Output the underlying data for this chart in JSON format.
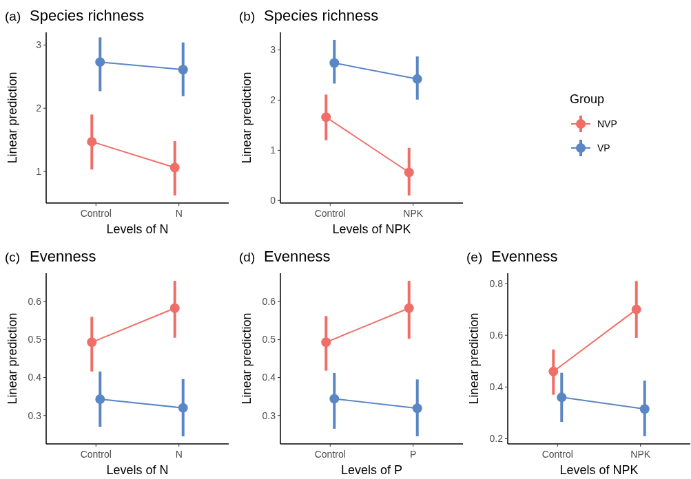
{
  "chart_data": [
    {
      "type": "line",
      "title": "Species richness",
      "annotations": [
        "(a)"
      ],
      "xlabel": "Levels of N",
      "ylabel": "Linear prediction",
      "categories": [
        "Control",
        "N"
      ],
      "ylim": [
        0.5,
        3.2
      ],
      "yticks": [
        1,
        2,
        3
      ],
      "marker": "circle",
      "series": [
        {
          "color": "#ef6f68",
          "values": [
            1.47,
            1.06
          ],
          "errors": [
            [
              1.03,
              1.9
            ],
            [
              0.62,
              1.48
            ]
          ]
        },
        {
          "color": "#5a86c5",
          "values": [
            2.73,
            2.61
          ],
          "errors": [
            [
              2.27,
              3.12
            ],
            [
              2.19,
              3.04
            ]
          ]
        }
      ]
    },
    {
      "type": "line",
      "title": "Species richness",
      "annotations": [
        "(b)"
      ],
      "xlabel": "Levels of NPK",
      "ylabel": "Linear prediction",
      "categories": [
        "Control",
        "NPK"
      ],
      "ylim": [
        -0.05,
        3.35
      ],
      "yticks": [
        0,
        1,
        2,
        3
      ],
      "marker": "circle",
      "legend": "right",
      "legend_title": "Group",
      "series": [
        {
          "name": "NVP",
          "color": "#ef6f68",
          "values": [
            1.66,
            0.56
          ],
          "errors": [
            [
              1.2,
              2.11
            ],
            [
              0.1,
              1.05
            ]
          ]
        },
        {
          "name": "VP",
          "color": "#5a86c5",
          "values": [
            2.74,
            2.42
          ],
          "errors": [
            [
              2.33,
              3.2
            ],
            [
              2.01,
              2.87
            ]
          ]
        }
      ]
    },
    {
      "type": "line",
      "title": "Evenness",
      "annotations": [
        "(c)"
      ],
      "xlabel": "Levels of N",
      "ylabel": "Linear prediction",
      "categories": [
        "Control",
        "N"
      ],
      "ylim": [
        0.225,
        0.675
      ],
      "yticks": [
        0.3,
        0.4,
        0.5,
        0.6
      ],
      "marker": "circle",
      "series": [
        {
          "color": "#ef6f68",
          "values": [
            0.493,
            0.583
          ],
          "errors": [
            [
              0.416,
              0.56
            ],
            [
              0.505,
              0.655
            ]
          ]
        },
        {
          "color": "#5a86c5",
          "values": [
            0.343,
            0.32
          ],
          "errors": [
            [
              0.27,
              0.416
            ],
            [
              0.245,
              0.396
            ]
          ]
        }
      ]
    },
    {
      "type": "line",
      "title": "Evenness",
      "annotations": [
        "(d)"
      ],
      "xlabel": "Levels of P",
      "ylabel": "Linear prediction",
      "categories": [
        "Control",
        "P"
      ],
      "ylim": [
        0.225,
        0.675
      ],
      "yticks": [
        0.3,
        0.4,
        0.5,
        0.6
      ],
      "marker": "circle",
      "series": [
        {
          "color": "#ef6f68",
          "values": [
            0.493,
            0.583
          ],
          "errors": [
            [
              0.418,
              0.562
            ],
            [
              0.502,
              0.655
            ]
          ]
        },
        {
          "color": "#5a86c5",
          "values": [
            0.344,
            0.319
          ],
          "errors": [
            [
              0.265,
              0.412
            ],
            [
              0.245,
              0.395
            ]
          ]
        }
      ]
    },
    {
      "type": "line",
      "title": "Evenness",
      "annotations": [
        "(e)"
      ],
      "xlabel": "Levels of NPK",
      "ylabel": "Linear prediction",
      "categories": [
        "Control",
        "NPK"
      ],
      "ylim": [
        0.18,
        0.84
      ],
      "yticks": [
        0.2,
        0.4,
        0.6,
        0.8
      ],
      "marker": "circle",
      "series": [
        {
          "color": "#ef6f68",
          "values": [
            0.46,
            0.7
          ],
          "errors": [
            [
              0.37,
              0.545
            ],
            [
              0.59,
              0.81
            ]
          ]
        },
        {
          "color": "#5a86c5",
          "values": [
            0.36,
            0.315
          ],
          "errors": [
            [
              0.265,
              0.455
            ],
            [
              0.21,
              0.425
            ]
          ]
        }
      ]
    }
  ]
}
